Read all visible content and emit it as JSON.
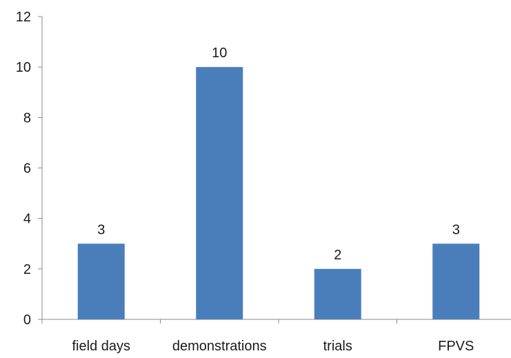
{
  "chart_data": {
    "type": "bar",
    "categories": [
      "field days",
      "demonstrations",
      "trials",
      "FPVS"
    ],
    "values": [
      3,
      10,
      2,
      3
    ],
    "data_labels": [
      "3",
      "10",
      "2",
      "3"
    ],
    "title": "",
    "xlabel": "",
    "ylabel": "",
    "ylim": [
      0,
      12
    ],
    "yticks": [
      0,
      2,
      4,
      6,
      8,
      10,
      12
    ],
    "grid": false,
    "legend": "none",
    "bar_color": "#4a7ebb",
    "axis_color": "#888888"
  }
}
